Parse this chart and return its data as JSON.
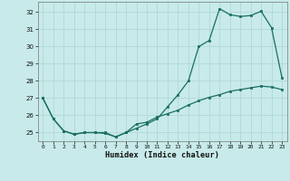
{
  "xlabel": "Humidex (Indice chaleur)",
  "background_color": "#c8eaea",
  "grid_color": "#b0d8d8",
  "line_color": "#1a6e64",
  "xlim": [
    -0.5,
    23.5
  ],
  "ylim": [
    24.5,
    32.6
  ],
  "yticks": [
    25,
    26,
    27,
    28,
    29,
    30,
    31,
    32
  ],
  "xticks": [
    0,
    1,
    2,
    3,
    4,
    5,
    6,
    7,
    8,
    9,
    10,
    11,
    12,
    13,
    14,
    15,
    16,
    17,
    18,
    19,
    20,
    21,
    22,
    23
  ],
  "series1_x": [
    0,
    1,
    2,
    3,
    4,
    5,
    6,
    7,
    8,
    9,
    10,
    11,
    12,
    13,
    14,
    15,
    16,
    17,
    18,
    19,
    20,
    21,
    22,
    23
  ],
  "series1_y": [
    27.0,
    25.8,
    25.1,
    24.9,
    25.0,
    25.0,
    24.95,
    24.75,
    25.0,
    25.25,
    25.5,
    25.8,
    26.5,
    27.2,
    28.0,
    30.0,
    30.35,
    32.2,
    31.85,
    31.75,
    31.8,
    32.05,
    31.1,
    28.2
  ],
  "series2_x": [
    0,
    1,
    2,
    3,
    4,
    5,
    6,
    7,
    8,
    9,
    10,
    11,
    12,
    13,
    14,
    15,
    16,
    17,
    18,
    19,
    20,
    21,
    22,
    23
  ],
  "series2_y": [
    27.0,
    25.8,
    25.1,
    24.9,
    25.0,
    25.0,
    25.0,
    24.75,
    25.0,
    25.5,
    25.6,
    25.9,
    26.1,
    26.3,
    26.6,
    26.85,
    27.05,
    27.2,
    27.4,
    27.5,
    27.6,
    27.7,
    27.65,
    27.5
  ]
}
